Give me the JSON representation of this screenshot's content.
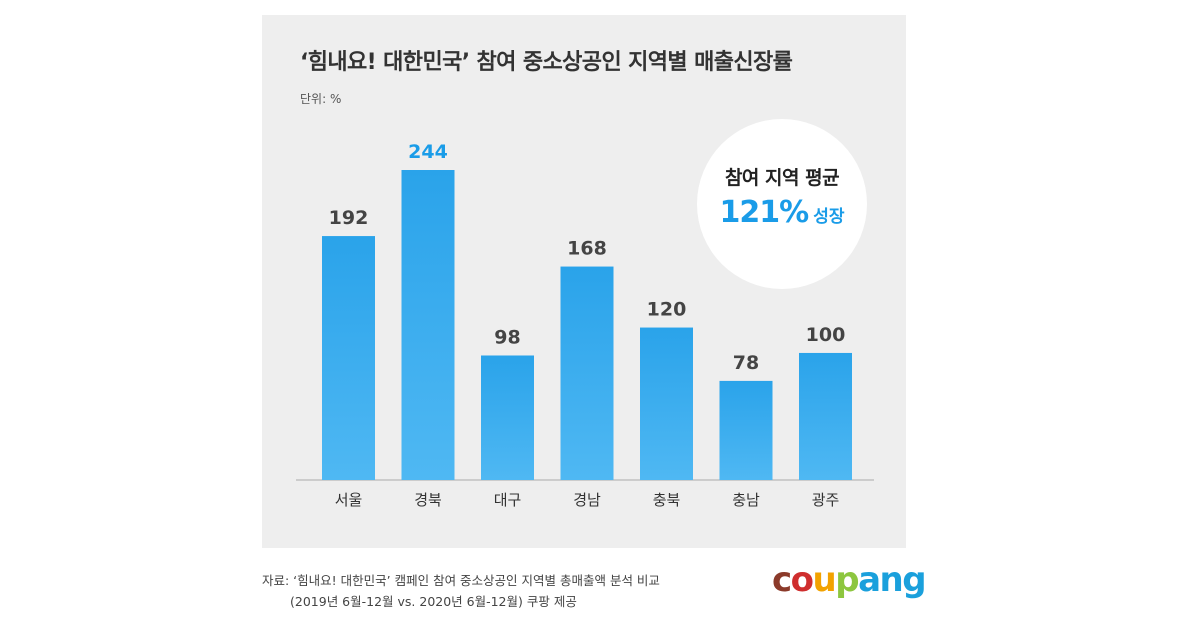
{
  "title": "‘힘내요! 대한민국’ 참여 중소상공인 지역별 매출신장률",
  "unit": "단위: %",
  "callout": {
    "line1": "참여 지역 평균",
    "value": "121%",
    "suffix": "성장"
  },
  "source": {
    "line1": "자료: ‘힘내요! 대한민국’ 캠페인 참여 중소상공인 지역별 총매출액 분석 비교",
    "line2": "(2019년 6월-12월 vs. 2020년 6월-12월) 쿠팡 제공"
  },
  "logo": {
    "text": "coupang",
    "letters": [
      "c",
      "o",
      "u",
      "p",
      "a",
      "n",
      "g"
    ],
    "colors": [
      "#8b3a2a",
      "#cf2e2e",
      "#f2a200",
      "#8dc63f",
      "#1aa0dc",
      "#1aa0dc",
      "#1aa0dc"
    ]
  },
  "colors": {
    "bar": "#2aa3ea",
    "bar_light": "#4fb8f3",
    "label": "#444444",
    "highlight": "#1a9ce8"
  },
  "chart_data": {
    "type": "bar",
    "categories": [
      "서울",
      "경북",
      "대구",
      "경남",
      "충북",
      "충남",
      "광주"
    ],
    "values": [
      192,
      244,
      98,
      168,
      120,
      78,
      100
    ],
    "value_labels": [
      "192",
      "244",
      "98",
      "168",
      "120",
      "78",
      "100"
    ],
    "highlight_index": 1,
    "ylim": [
      0,
      260
    ],
    "grid": false
  }
}
